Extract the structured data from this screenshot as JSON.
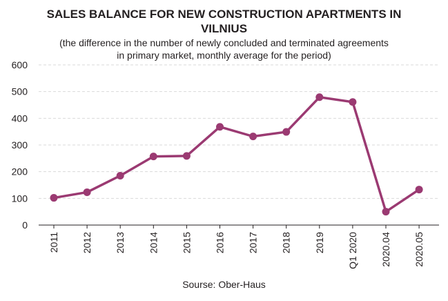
{
  "title_line1": "SALES BALANCE FOR NEW CONSTRUCTION APARTMENTS IN",
  "title_line2": "VILNIUS",
  "subtitle_line1": "(the difference in the number of newly concluded and terminated agreements",
  "subtitle_line2": "in primary market, monthly average for the period)",
  "source": "Sourse: Ober-Haus",
  "colors": {
    "line": "#9b3a72",
    "grid": "#d9d9d9",
    "axis": "#231f20"
  },
  "chart_data": {
    "type": "line",
    "categories": [
      "2011",
      "2012",
      "2013",
      "2014",
      "2015",
      "2016",
      "2017",
      "2018",
      "2019",
      "Q1 2020",
      "2020.04",
      "2020.05"
    ],
    "values": [
      102,
      123,
      185,
      257,
      259,
      368,
      332,
      349,
      479,
      461,
      50,
      133
    ],
    "ylim": [
      0,
      600
    ],
    "yticks": [
      0,
      100,
      200,
      300,
      400,
      500,
      600
    ],
    "grid": true,
    "legend": "none"
  }
}
